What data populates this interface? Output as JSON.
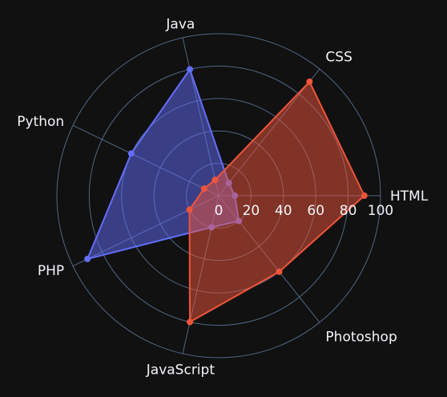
{
  "chart_data": {
    "type": "radar",
    "categories": [
      "HTML",
      "CSS",
      "Java",
      "Python",
      "PHP",
      "JavaScript",
      "Photoshop"
    ],
    "radial_ticks": [
      "0",
      "20",
      "40",
      "60",
      "80",
      "100"
    ],
    "rlim": [
      0,
      100
    ],
    "grid": true,
    "legend": "none",
    "series": [
      {
        "values": [
          10,
          10,
          80,
          60,
          90,
          20,
          20
        ],
        "color": "#636efa",
        "fill": "rgba(99,110,250,0.5)"
      },
      {
        "values": [
          90,
          90,
          10,
          10,
          20,
          80,
          60
        ],
        "color": "#ef553b",
        "fill": "rgba(239,85,59,0.5)"
      }
    ]
  },
  "colors": {
    "background": "#111111",
    "grid": "#506784",
    "text": "#f2f5fa"
  }
}
